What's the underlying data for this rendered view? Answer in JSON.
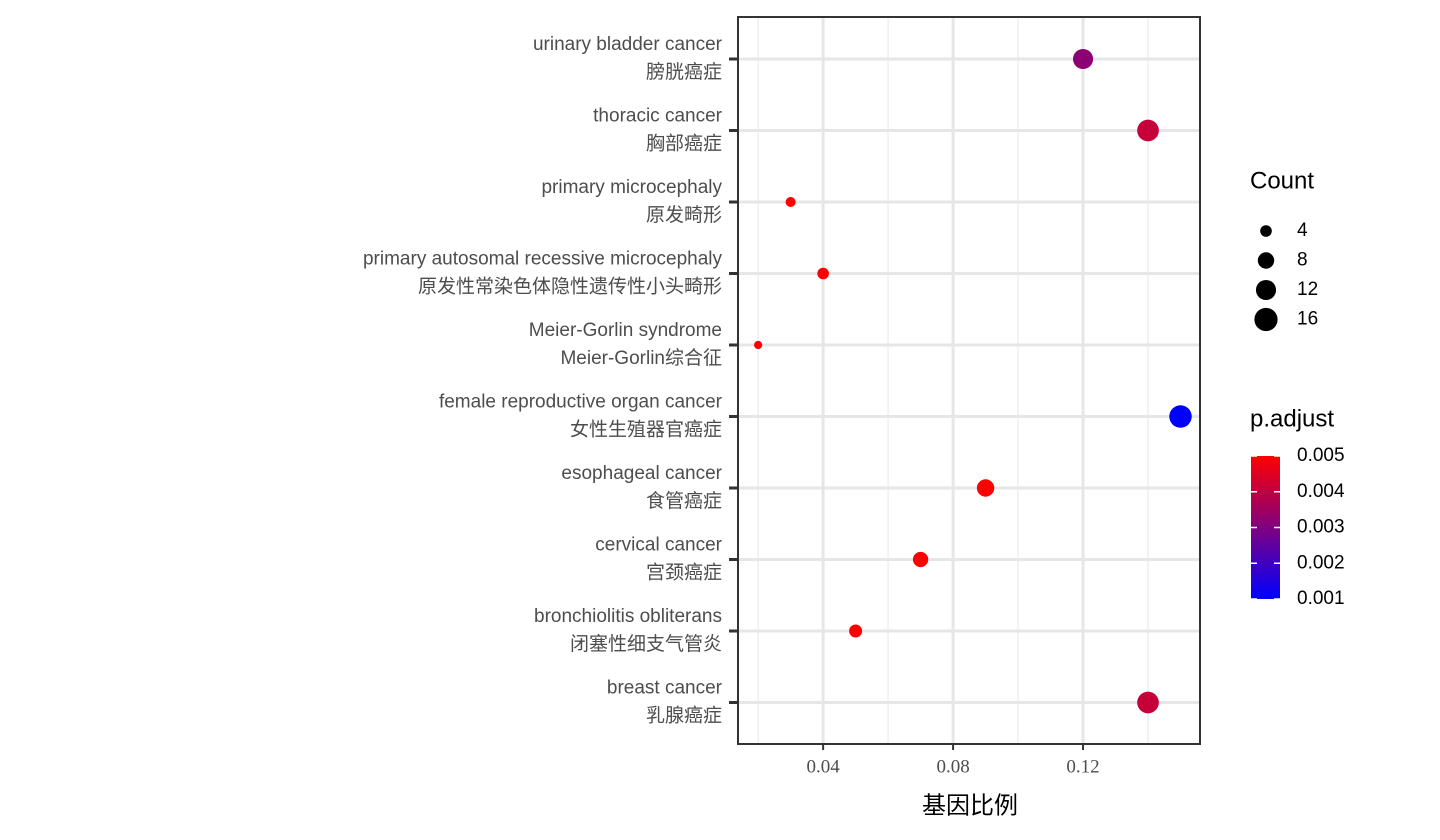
{
  "chart_data": {
    "type": "dot",
    "categories": [
      [
        "urinary bladder cancer",
        "膀胱癌症"
      ],
      [
        "thoracic cancer",
        "胸部癌症"
      ],
      [
        "primary microcephaly",
        "原发畸形"
      ],
      [
        "primary autosomal recessive microcephaly",
        "原发性常染色体隐性遗传性小头畸形"
      ],
      [
        "Meier-Gorlin syndrome",
        "Meier-Gorlin综合征"
      ],
      [
        "female reproductive organ cancer",
        "女性生殖器官癌症"
      ],
      [
        "esophageal cancer",
        "食管癌症"
      ],
      [
        "cervical cancer",
        "宫颈癌症"
      ],
      [
        "bronchiolitis obliterans",
        "闭塞性细支气管炎"
      ],
      [
        "breast cancer",
        "乳腺癌症"
      ]
    ],
    "x": [
      0.12,
      0.14,
      0.03,
      0.04,
      0.02,
      0.15,
      0.09,
      0.07,
      0.05,
      0.14
    ],
    "count": [
      12,
      14,
      3,
      4,
      2,
      15,
      9,
      7,
      5,
      14
    ],
    "p_adjust": [
      0.0032,
      0.0041,
      0.005,
      0.005,
      0.005,
      0.001,
      0.005,
      0.005,
      0.005,
      0.0041
    ],
    "xlabel": "基因比例",
    "xlim": [
      0.0138,
      0.156
    ],
    "xticks": [
      0.04,
      0.08,
      0.12
    ],
    "xminor": [
      0.02,
      0.06,
      0.1,
      0.14
    ],
    "grid": true,
    "size_legend": {
      "title": "Count",
      "ticks": [
        4,
        8,
        12,
        16
      ]
    },
    "color_legend": {
      "title": "p.adjust",
      "lim": [
        0.001,
        0.005
      ],
      "ticks": [
        0.005,
        0.004,
        0.003,
        0.002,
        0.001
      ],
      "low_color": "#0000ff",
      "high_color": "#ff0000"
    }
  }
}
